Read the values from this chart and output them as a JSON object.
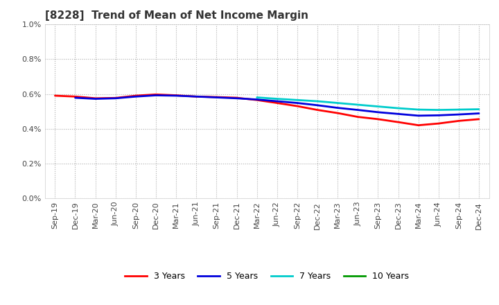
{
  "title": "[8228]  Trend of Mean of Net Income Margin",
  "ylim": [
    0.0,
    0.01
  ],
  "yticks": [
    0.0,
    0.002,
    0.004,
    0.006,
    0.008,
    0.01
  ],
  "ytick_labels": [
    "0.0%",
    "0.2%",
    "0.4%",
    "0.6%",
    "0.8%",
    "1.0%"
  ],
  "x_labels": [
    "Sep-19",
    "Dec-19",
    "Mar-20",
    "Jun-20",
    "Sep-20",
    "Dec-20",
    "Mar-21",
    "Jun-21",
    "Sep-21",
    "Dec-21",
    "Mar-22",
    "Jun-22",
    "Sep-22",
    "Dec-22",
    "Mar-23",
    "Jun-23",
    "Sep-23",
    "Dec-23",
    "Mar-24",
    "Jun-24",
    "Sep-24",
    "Dec-24"
  ],
  "series": {
    "3 Years": {
      "color": "#ff0000",
      "values": [
        0.0059,
        0.00585,
        0.00575,
        0.00577,
        0.0059,
        0.00597,
        0.00592,
        0.00585,
        0.00582,
        0.00578,
        0.00565,
        0.00548,
        0.0053,
        0.00508,
        0.0049,
        0.00468,
        0.00455,
        0.00438,
        0.0042,
        0.0043,
        0.00445,
        0.00455
      ]
    },
    "5 Years": {
      "color": "#0000dd",
      "values": [
        null,
        0.00578,
        0.00572,
        0.00575,
        0.00585,
        0.00592,
        0.0059,
        0.00585,
        0.0058,
        0.00575,
        0.00568,
        0.00558,
        0.00548,
        0.00535,
        0.0052,
        0.00508,
        0.00495,
        0.00485,
        0.00475,
        0.00477,
        0.00482,
        0.00488
      ]
    },
    "7 Years": {
      "color": "#00cccc",
      "values": [
        null,
        null,
        null,
        null,
        null,
        null,
        null,
        null,
        null,
        null,
        0.0058,
        0.00572,
        0.00565,
        0.00558,
        0.00548,
        0.00538,
        0.00528,
        0.00518,
        0.0051,
        0.00508,
        0.0051,
        0.00512
      ]
    },
    "10 Years": {
      "color": "#009900",
      "values": [
        null,
        null,
        null,
        null,
        null,
        null,
        null,
        null,
        null,
        null,
        null,
        null,
        null,
        null,
        null,
        null,
        null,
        null,
        null,
        null,
        null,
        null
      ]
    }
  },
  "background_color": "#ffffff",
  "grid_color": "#aaaaaa",
  "title_fontsize": 11,
  "label_fontsize": 8
}
